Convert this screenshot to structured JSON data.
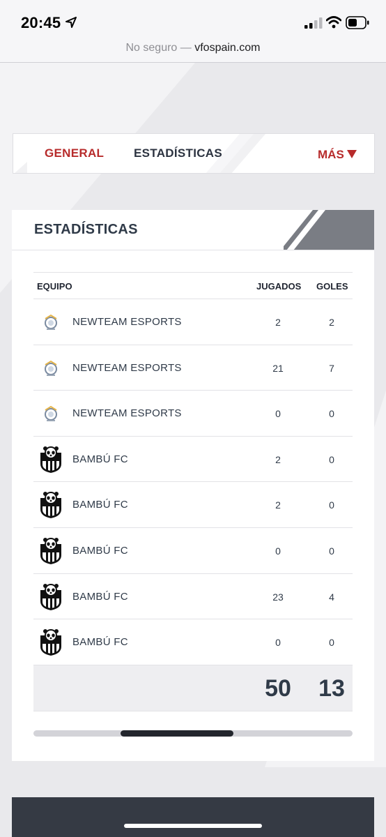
{
  "status_bar": {
    "time": "20:45",
    "url_insecure": "No seguro —",
    "url_domain": "vfospain.com"
  },
  "nav": {
    "tabs": [
      {
        "label": "GENERAL",
        "active": true
      },
      {
        "label": "ESTADÍSTICAS",
        "active": false
      }
    ],
    "more_label": "MÁS",
    "accent_color": "#b72b2b"
  },
  "stats": {
    "title": "ESTADÍSTICAS",
    "columns": {
      "team": "EQUIPO",
      "played": "JUGADOS",
      "goals": "GOLES"
    },
    "rows": [
      {
        "team": "NEWTEAM ESPORTS",
        "played": "2",
        "goals": "2",
        "logo": "newteam-logo"
      },
      {
        "team": "NEWTEAM ESPORTS",
        "played": "21",
        "goals": "7",
        "logo": "newteam-logo"
      },
      {
        "team": "NEWTEAM ESPORTS",
        "played": "0",
        "goals": "0",
        "logo": "newteam-logo"
      },
      {
        "team": "BAMBÚ FC",
        "played": "2",
        "goals": "0",
        "logo": "bambu-logo"
      },
      {
        "team": "BAMBÚ FC",
        "played": "2",
        "goals": "0",
        "logo": "bambu-logo"
      },
      {
        "team": "BAMBÚ FC",
        "played": "0",
        "goals": "0",
        "logo": "bambu-logo"
      },
      {
        "team": "BAMBÚ FC",
        "played": "23",
        "goals": "4",
        "logo": "bambu-logo"
      },
      {
        "team": "BAMBÚ FC",
        "played": "0",
        "goals": "0",
        "logo": "bambu-logo"
      }
    ],
    "totals": {
      "played": "50",
      "goals": "13"
    }
  }
}
